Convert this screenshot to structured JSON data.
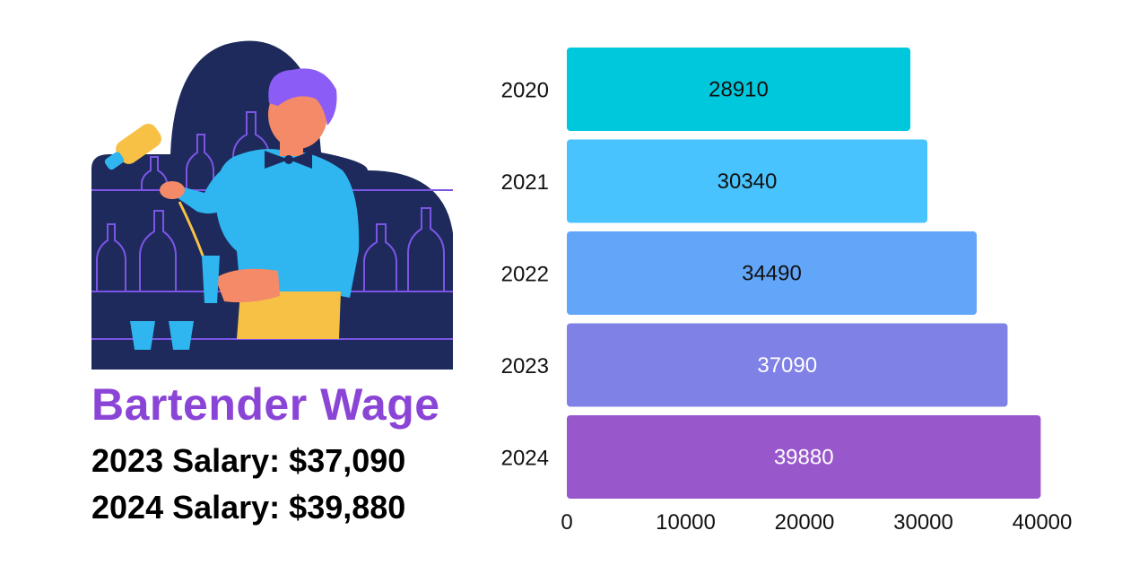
{
  "header": {
    "title": "Bartender Wage",
    "salary_2023": "2023 Salary: $37,090",
    "salary_2024": "2024 Salary: $39,880"
  },
  "illustration": {
    "icon": "bartender-pouring-drink-illustration"
  },
  "colors": {
    "title": "#8b45d6",
    "bars": [
      "#00c8dc",
      "#49c3fd",
      "#62a6fa",
      "#7f81e6",
      "#9858cc"
    ],
    "label_dark": "#111111",
    "label_light": "#ffffff"
  },
  "chart_data": {
    "type": "bar",
    "orientation": "horizontal",
    "categories": [
      "2020",
      "2021",
      "2022",
      "2023",
      "2024"
    ],
    "values": [
      28910,
      30340,
      34490,
      37090,
      39880
    ],
    "data_labels": [
      "28910",
      "30340",
      "34490",
      "37090",
      "39880"
    ],
    "xlim": [
      0,
      40000
    ],
    "x_ticks": [
      0,
      10000,
      20000,
      30000,
      40000
    ],
    "x_tick_labels": [
      "0",
      "10000",
      "20000",
      "30000",
      "40000"
    ],
    "grid": false,
    "legend": "none"
  }
}
